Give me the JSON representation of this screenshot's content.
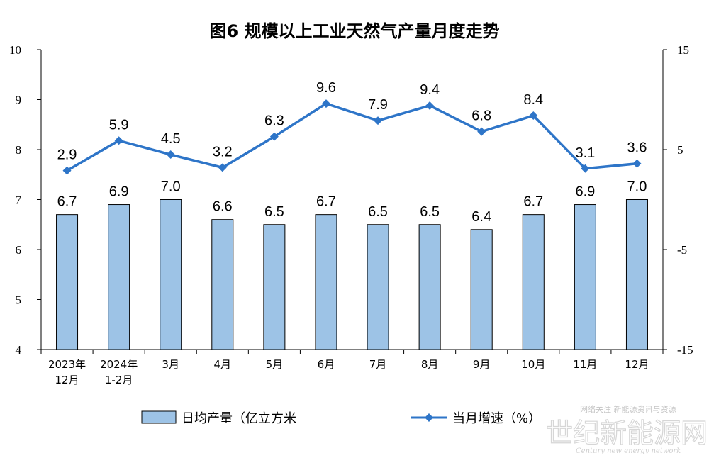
{
  "chart_data": {
    "type": "bar",
    "title": "图6  规模以上工业天然气产量月度走势",
    "categories": [
      "2023年\n12月",
      "2024年\n1-2月",
      "3月",
      "4月",
      "5月",
      "6月",
      "7月",
      "8月",
      "9月",
      "10月",
      "11月",
      "12月"
    ],
    "series": [
      {
        "name": "日均产量（亿立方米",
        "type": "bar",
        "axis": "left",
        "color": "#9dc3e6",
        "values": [
          6.7,
          6.9,
          7.0,
          6.6,
          6.5,
          6.7,
          6.5,
          6.5,
          6.4,
          6.7,
          6.9,
          7.0
        ],
        "labels": [
          "6.7",
          "6.9",
          "7.0",
          "6.6",
          "6.5",
          "6.7",
          "6.5",
          "6.5",
          "6.4",
          "6.7",
          "6.9",
          "7.0"
        ]
      },
      {
        "name": "当月增速（%）",
        "type": "line",
        "axis": "right",
        "color": "#2e75c8",
        "values": [
          2.9,
          5.9,
          4.5,
          3.2,
          6.3,
          9.6,
          7.9,
          9.4,
          6.8,
          8.4,
          3.1,
          3.6
        ],
        "labels": [
          "2.9",
          "5.9",
          "4.5",
          "3.2",
          "6.3",
          "9.6",
          "7.9",
          "9.4",
          "6.8",
          "8.4",
          "3.1",
          "3.6"
        ]
      }
    ],
    "ylim_left": [
      4,
      10
    ],
    "yticks_left": [
      4,
      5,
      6,
      7,
      8,
      9,
      10
    ],
    "ylim_right": [
      -15,
      15
    ],
    "yticks_right": [
      -15,
      -5,
      5,
      15
    ],
    "legend_placement": "bottom",
    "grid": false
  },
  "watermark": {
    "top": "网络关注 新能源资讯与资源",
    "main": "世纪新能源网",
    "en": "Century new energy network"
  }
}
